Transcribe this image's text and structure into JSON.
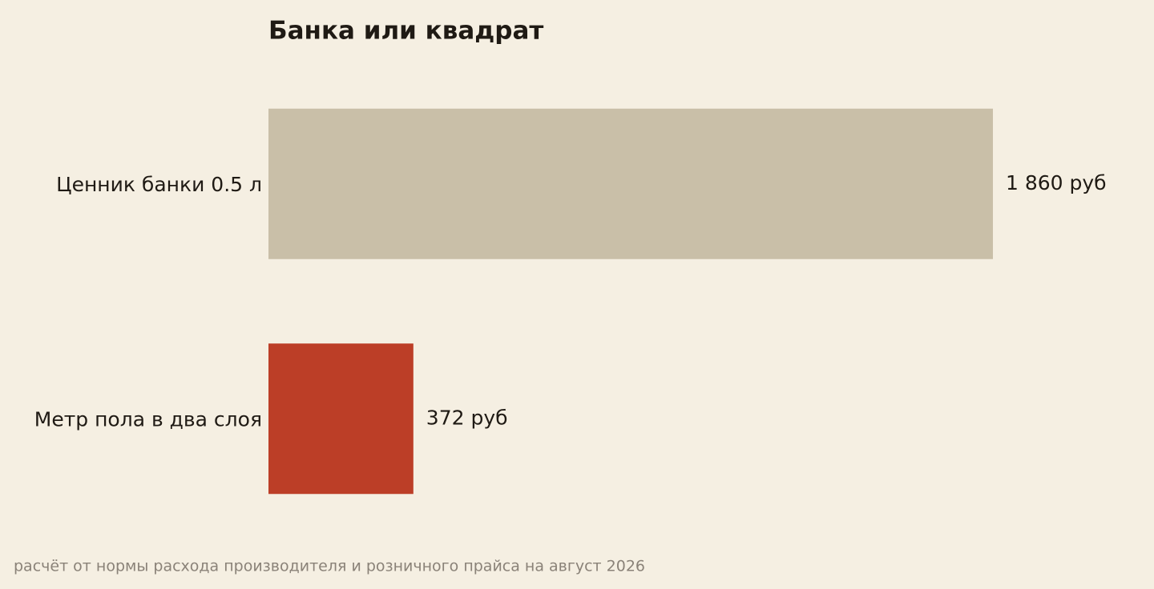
{
  "chart_data": {
    "type": "hbar",
    "title": "Банка или квадрат",
    "categories": [
      "Ценник банки 0.5 л",
      "Метр пола в два слоя"
    ],
    "values": [
      1860,
      372
    ],
    "value_labels": [
      "1 860 руб",
      "372 руб"
    ],
    "colors": [
      "#c9bfa8",
      "#bc3e27"
    ],
    "note": "расчёт от нормы расхода производителя и розничного прайса на август 2026"
  }
}
